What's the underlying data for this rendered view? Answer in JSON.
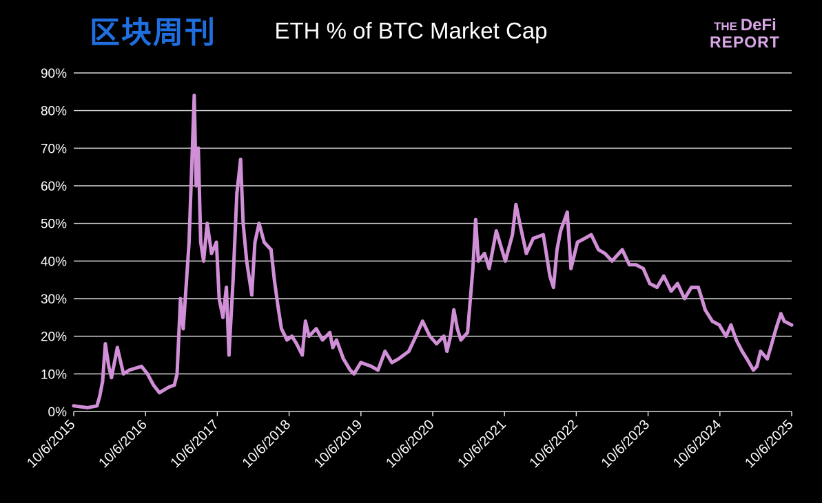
{
  "chart_data": {
    "type": "line",
    "title": "ETH % of BTC Market Cap",
    "xlabel": "",
    "ylabel": "",
    "ylim": [
      0,
      90
    ],
    "xlim": [
      "2015-10-06",
      "2025-10-06"
    ],
    "grid": true,
    "legend": "none",
    "line_color": "#d08fd6",
    "y_ticks": [
      "0%",
      "10%",
      "20%",
      "30%",
      "40%",
      "50%",
      "60%",
      "70%",
      "80%",
      "90%"
    ],
    "x_ticks": [
      "10/6/2015",
      "10/6/2016",
      "10/6/2017",
      "10/6/2018",
      "10/6/2019",
      "10/6/2020",
      "10/6/2021",
      "10/6/2022",
      "10/6/2023",
      "10/6/2024",
      "10/6/2025"
    ],
    "series": [
      {
        "x": [
          "2015-10-06",
          "2015-12-15",
          "2016-02-01",
          "2016-02-15",
          "2016-03-01",
          "2016-03-15",
          "2016-04-01",
          "2016-04-15",
          "2016-05-15",
          "2016-06-15",
          "2016-07-15",
          "2016-09-15",
          "2016-10-15",
          "2016-11-15",
          "2016-12-15",
          "2017-02-01",
          "2017-03-01",
          "2017-03-15",
          "2017-04-01",
          "2017-04-15",
          "2017-05-01",
          "2017-05-15",
          "2017-06-10",
          "2017-06-20",
          "2017-07-01",
          "2017-07-13",
          "2017-07-28",
          "2017-08-15",
          "2017-09-06",
          "2017-10-01",
          "2017-10-15",
          "2017-11-03",
          "2017-11-21",
          "2017-12-04",
          "2017-12-25",
          "2018-01-13",
          "2018-02-01",
          "2018-02-14",
          "2018-03-04",
          "2018-03-30",
          "2018-04-15",
          "2018-05-06",
          "2018-06-01",
          "2018-07-06",
          "2018-07-23",
          "2018-08-10",
          "2018-08-28",
          "2018-09-25",
          "2018-10-20",
          "2018-11-13",
          "2018-12-12",
          "2018-12-28",
          "2019-01-15",
          "2019-02-21",
          "2019-03-25",
          "2019-05-01",
          "2019-05-16",
          "2019-06-04",
          "2019-07-09",
          "2019-08-13",
          "2019-09-01",
          "2019-10-06",
          "2019-11-28",
          "2020-01-01",
          "2020-02-06",
          "2020-03-12",
          "2020-04-15",
          "2020-06-06",
          "2020-07-12",
          "2020-08-15",
          "2020-09-21",
          "2020-10-25",
          "2020-12-01",
          "2020-12-17",
          "2021-01-04",
          "2021-01-21",
          "2021-02-08",
          "2021-02-26",
          "2021-04-01",
          "2021-04-28",
          "2021-05-12",
          "2021-05-26",
          "2021-06-26",
          "2021-07-20",
          "2021-08-25",
          "2021-10-10",
          "2021-11-15",
          "2021-12-03",
          "2021-12-27",
          "2022-01-25",
          "2022-03-01",
          "2022-04-21",
          "2022-05-25",
          "2022-06-12",
          "2022-06-30",
          "2022-07-18",
          "2022-08-21",
          "2022-09-09",
          "2022-10-12",
          "2022-11-18",
          "2022-12-21",
          "2023-01-27",
          "2023-03-01",
          "2023-04-06",
          "2023-05-28",
          "2023-07-03",
          "2023-08-06",
          "2023-09-12",
          "2023-10-15",
          "2023-11-21",
          "2023-12-25",
          "2024-02-01",
          "2024-03-04",
          "2024-04-09",
          "2024-05-14",
          "2024-06-18",
          "2024-07-06",
          "2024-07-23",
          "2024-08-28",
          "2024-10-03",
          "2024-11-06",
          "2024-12-01",
          "2024-12-28",
          "2025-01-27",
          "2025-02-20",
          "2025-03-25",
          "2025-04-12",
          "2025-05-01",
          "2025-06-04",
          "2025-06-21",
          "2025-07-18",
          "2025-08-12",
          "2025-08-29",
          "2025-10-06"
        ],
        "y": [
          1.5,
          1,
          1.5,
          4,
          8,
          18,
          12,
          9,
          17,
          10,
          11,
          12,
          10,
          7,
          5,
          6.5,
          7,
          10,
          30,
          22,
          34,
          45,
          84,
          60,
          70,
          45,
          40,
          50,
          42,
          45,
          30,
          25,
          33,
          15,
          35,
          58,
          67,
          50,
          40,
          31,
          45,
          50,
          45,
          43,
          35,
          28,
          22,
          19,
          20,
          18,
          15,
          24,
          20,
          22,
          19,
          21,
          17,
          19,
          14,
          11,
          10,
          13,
          12,
          11,
          16,
          13,
          14,
          16,
          20,
          24,
          20,
          18,
          20,
          16,
          20,
          27,
          22,
          19,
          21,
          38,
          51,
          40,
          42,
          38,
          48,
          40,
          47,
          55,
          49,
          42,
          46,
          47,
          36,
          33,
          43,
          48,
          53,
          38,
          45,
          46,
          47,
          43,
          42,
          40,
          43,
          39,
          39,
          38,
          34,
          33,
          36,
          32,
          34,
          30,
          33,
          33,
          30,
          27,
          24,
          23,
          20,
          23,
          19,
          16,
          14,
          11,
          12,
          16,
          14,
          17,
          22,
          26,
          24,
          23
        ]
      }
    ]
  },
  "logo": {
    "line1_small": "THE",
    "line1_big": "DeFi",
    "line2": "REPORT"
  },
  "watermark": "区块周刊"
}
